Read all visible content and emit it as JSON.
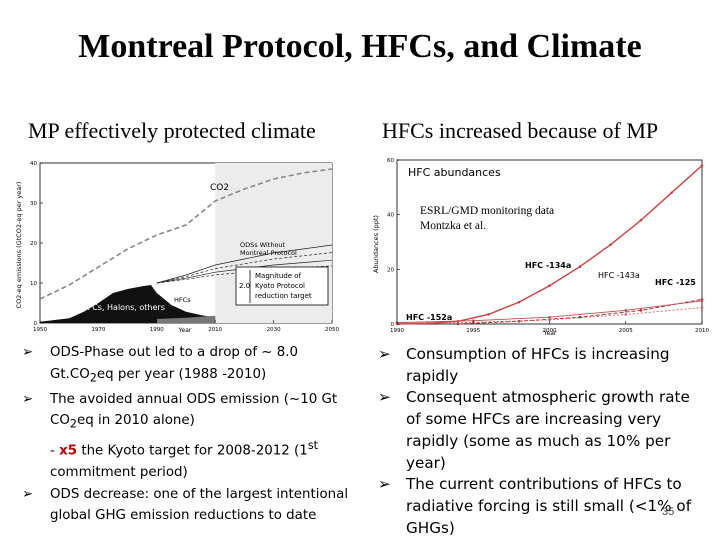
{
  "slide": {
    "title": "Montreal Protocol, HFCs, and Climate",
    "page_number": "35"
  },
  "left": {
    "heading": "MP effectively protected climate",
    "bullets": [
      {
        "pre": "ODS-Phase out led to a drop of ~ 8.0 Gt.CO",
        "sub": "2",
        "post": "eq per year (1988 -2010)"
      },
      {
        "pre": "The avoided annual ODS emission (~10 Gt CO",
        "sub": "2",
        "post": "eq in 2010 alone)"
      },
      {
        "pre": "ODS decrease: one of the largest intentional global GHG emission reductions to date"
      }
    ],
    "sub_line": {
      "dash": "- ",
      "highlight": "x5",
      "text1": " the Kyoto target for 2008-2012 (1",
      "sup": "st",
      "text2": " commitment period)"
    }
  },
  "right": {
    "heading": "HFCs increased because of MP",
    "bullets": [
      "Consumption of HFCs is increasing rapidly",
      "Consequent atmospheric growth rate of some HFCs are increasing very rapidly (some as much as 10% per year)",
      "The current contributions of HFCs to radiative forcing is still small (<1% of GHGs)"
    ]
  },
  "chart_data": [
    {
      "type": "area",
      "title": "",
      "xlabel": "Year",
      "ylabel": "CO2-eq emissions (GtCO2-eq per year)",
      "xlim": [
        1950,
        2050
      ],
      "ylim": [
        0,
        40
      ],
      "x_ticks": [
        "1950",
        "1970",
        "1990",
        "2010",
        "2030",
        "2050"
      ],
      "y_ticks": [
        "0",
        "10",
        "20",
        "30",
        "40"
      ],
      "series": [
        {
          "name": "CO2",
          "x": [
            1950,
            1960,
            1970,
            1980,
            1990,
            2000,
            2010,
            2020,
            2030,
            2040,
            2050
          ],
          "values": [
            6,
            9.5,
            14,
            18.5,
            22,
            24.5,
            30.5,
            33.5,
            36,
            37.5,
            38.5
          ]
        },
        {
          "name": "CFCs, Halons, others",
          "x": [
            1950,
            1960,
            1965,
            1970,
            1975,
            1980,
            1985,
            1988,
            1990,
            1995,
            2000,
            2005,
            2010
          ],
          "values": [
            0.3,
            1.2,
            2.8,
            5,
            7.5,
            8.5,
            9.2,
            9.5,
            7.5,
            4.5,
            2.8,
            2.0,
            1.3
          ]
        },
        {
          "name": "HFCs",
          "x": [
            1990,
            2000,
            2010
          ],
          "values": [
            0,
            0.3,
            0.8
          ]
        },
        {
          "name": "ODSs Without Montreal Protocol",
          "x": [
            1990,
            2000,
            2010,
            2020,
            2030,
            2040,
            2050
          ],
          "values": [
            10,
            12,
            14.5,
            16,
            17.5,
            18.5,
            19.5
          ]
        }
      ],
      "annotations": [
        "CO2",
        "ODSs Without",
        "Montreal Protocol",
        "Magnitude of",
        "Kyoto Protocol",
        "reduction target",
        "2.0",
        "HFCs",
        "CFCs, Halons, others"
      ]
    },
    {
      "type": "line",
      "title": "HFC abundances",
      "xlabel": "Year",
      "ylabel": "Abundances (ppt)",
      "xlim": [
        1990,
        2010
      ],
      "ylim": [
        0,
        60
      ],
      "x_ticks": [
        "1990",
        "1995",
        "2000",
        "2005",
        "2010"
      ],
      "y_ticks": [
        "0",
        "20",
        "40",
        "60"
      ],
      "series": [
        {
          "name": "HFC -134a",
          "x": [
            1990,
            1992,
            1994,
            1996,
            1998,
            2000,
            2002,
            2004,
            2006,
            2008,
            2010
          ],
          "values": [
            0,
            0.2,
            1,
            3.5,
            8,
            14,
            21,
            29,
            38,
            48,
            58
          ]
        },
        {
          "name": "HFC -125",
          "x": [
            1994,
            1998,
            2002,
            2006,
            2010
          ],
          "values": [
            0,
            1,
            2.5,
            5,
            9
          ]
        },
        {
          "name": "HFC -143a",
          "x": [
            1990,
            1995,
            2000,
            2005,
            2010
          ],
          "values": [
            0.5,
            1.2,
            2.5,
            5,
            8.5
          ]
        },
        {
          "name": "HFC -152a",
          "x": [
            1990,
            1995,
            2000,
            2005,
            2010
          ],
          "values": [
            0.2,
            0.6,
            1.5,
            3.5,
            6
          ]
        }
      ],
      "annotations": [
        "ESRL/GMD monitoring data",
        "Montzka et al."
      ]
    }
  ]
}
